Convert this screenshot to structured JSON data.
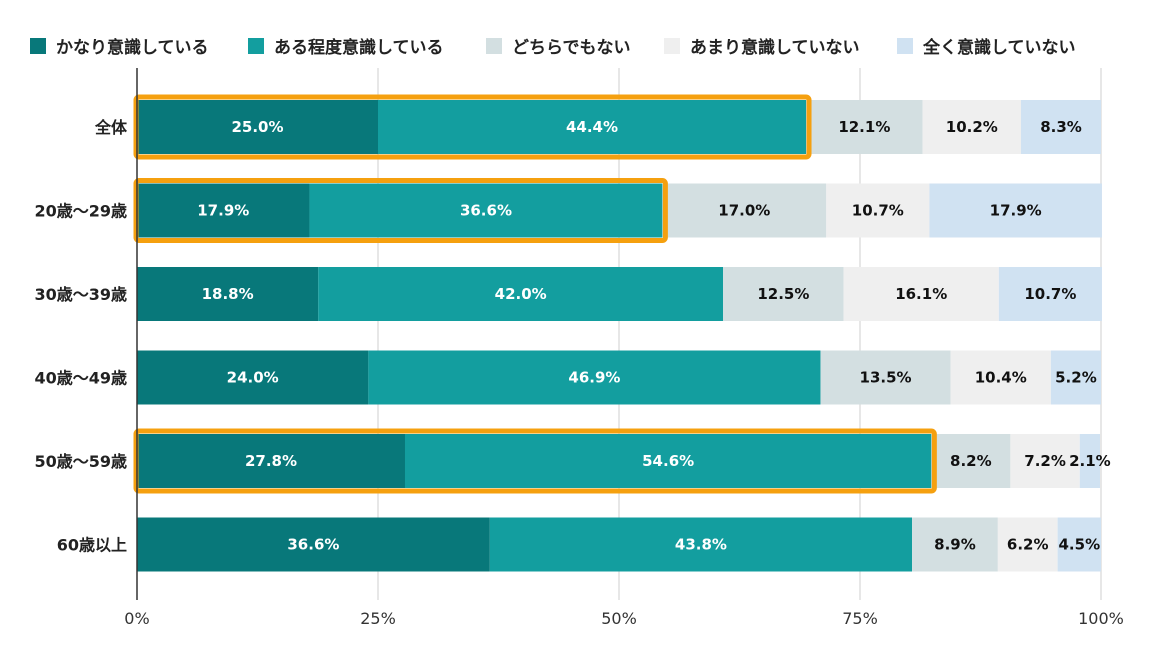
{
  "chart_data": {
    "type": "bar",
    "orientation": "horizontal",
    "stacked": true,
    "categories": [
      "全体",
      "20歳〜29歳",
      "30歳〜39歳",
      "40歳〜49歳",
      "50歳〜59歳",
      "60歳以上"
    ],
    "series": [
      {
        "name": "かなり意識している",
        "color": "#08787a",
        "label_color": "#ffffff",
        "values": [
          25.0,
          17.9,
          18.8,
          24.0,
          27.8,
          36.6
        ]
      },
      {
        "name": "ある程度意識している",
        "color": "#139e9f",
        "label_color": "#ffffff",
        "values": [
          44.4,
          36.6,
          42.0,
          46.9,
          54.6,
          43.8
        ]
      },
      {
        "name": "どちらでもない",
        "color": "#d3dfe1",
        "label_color": "#111111",
        "values": [
          12.1,
          17.0,
          12.5,
          13.5,
          8.2,
          8.9
        ]
      },
      {
        "name": "あまり意識していない",
        "color": "#efefef",
        "label_color": "#111111",
        "values": [
          10.2,
          10.7,
          16.1,
          10.4,
          7.2,
          6.2
        ]
      },
      {
        "name": "全く意識していない",
        "color": "#d0e2f2",
        "label_color": "#111111",
        "values": [
          8.3,
          17.9,
          10.7,
          5.2,
          2.1,
          4.5
        ]
      }
    ],
    "xlim": [
      0,
      100
    ],
    "x_ticks": [
      "0%",
      "25%",
      "50%",
      "75%",
      "100%"
    ],
    "x_tick_values": [
      0,
      25,
      50,
      75,
      100
    ],
    "legend_position": "top",
    "grid": true,
    "highlighted_categories": [
      "全体",
      "20歳〜29歳",
      "50歳〜59歳"
    ],
    "highlight_series": [
      "かなり意識している",
      "ある程度意識している"
    ],
    "highlight_color": "#f5a00f"
  }
}
